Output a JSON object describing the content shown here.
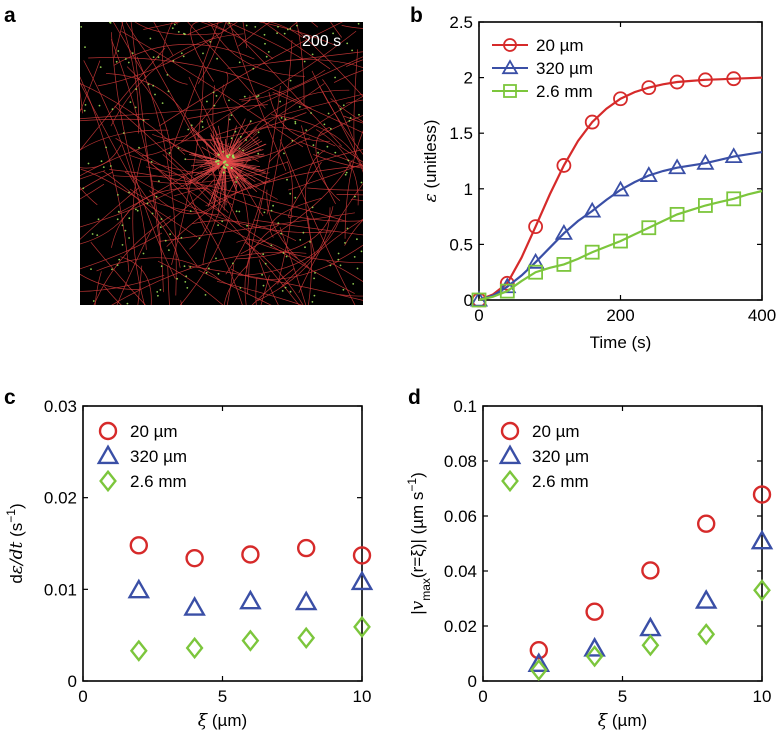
{
  "panel_labels": {
    "a": "a",
    "b": "b",
    "c": "c",
    "d": "d"
  },
  "image_panel": {
    "timestamp": "200 s",
    "fiber_color": "#d23a3a",
    "crosslink_color": "#9ee05a",
    "background": "#000000"
  },
  "series_styles": [
    {
      "name": "20 µm",
      "color": "#d62a2a",
      "marker_b": "circle",
      "marker_cd": "circle"
    },
    {
      "name": "320 µm",
      "color": "#3a4fa6",
      "marker_b": "triangle",
      "marker_cd": "triangle"
    },
    {
      "name": "2.6 mm",
      "color": "#7cc63c",
      "marker_b": "square",
      "marker_cd": "diamond"
    }
  ],
  "chart_data": [
    {
      "id": "b",
      "type": "line",
      "xlabel": "Time (s)",
      "ylabel_symbol": "ε",
      "ylabel_rest": " (unitless)",
      "xlim": [
        0,
        400
      ],
      "ylim": [
        0,
        2.5
      ],
      "xticks": [
        0,
        200,
        400
      ],
      "yticks": [
        0,
        0.5,
        1,
        1.5,
        2,
        2.5
      ],
      "yticklabels": [
        "0",
        "0.5",
        "1",
        "1.5",
        "2",
        "2.5"
      ],
      "legend_position": "top-left",
      "series": [
        {
          "name": "20 µm",
          "x": [
            0,
            20,
            40,
            60,
            80,
            100,
            120,
            140,
            160,
            180,
            200,
            220,
            240,
            260,
            280,
            300,
            320,
            340,
            360,
            380,
            400
          ],
          "y": [
            0,
            0.05,
            0.15,
            0.38,
            0.66,
            0.95,
            1.21,
            1.43,
            1.6,
            1.72,
            1.81,
            1.87,
            1.91,
            1.94,
            1.96,
            1.97,
            1.98,
            1.985,
            1.99,
            1.995,
            2.0
          ],
          "marker_x": [
            0,
            40,
            80,
            120,
            160,
            200,
            240,
            280,
            320,
            360
          ],
          "marker_y": [
            0,
            0.15,
            0.66,
            1.21,
            1.6,
            1.81,
            1.91,
            1.96,
            1.98,
            1.99
          ]
        },
        {
          "name": "320 µm",
          "x": [
            0,
            20,
            40,
            60,
            80,
            100,
            120,
            140,
            160,
            180,
            200,
            220,
            240,
            260,
            280,
            300,
            320,
            340,
            360,
            380,
            400
          ],
          "y": [
            0,
            0.04,
            0.12,
            0.22,
            0.34,
            0.47,
            0.6,
            0.71,
            0.8,
            0.9,
            0.99,
            1.06,
            1.12,
            1.16,
            1.19,
            1.21,
            1.23,
            1.26,
            1.29,
            1.31,
            1.33
          ],
          "marker_x": [
            0,
            40,
            80,
            120,
            160,
            200,
            240,
            280,
            320,
            360
          ],
          "marker_y": [
            0,
            0.12,
            0.34,
            0.6,
            0.8,
            0.99,
            1.12,
            1.19,
            1.23,
            1.29
          ]
        },
        {
          "name": "2.6 mm",
          "x": [
            0,
            20,
            40,
            60,
            80,
            100,
            120,
            140,
            160,
            180,
            200,
            220,
            240,
            260,
            280,
            300,
            320,
            340,
            360,
            380,
            400
          ],
          "y": [
            0,
            0.03,
            0.08,
            0.17,
            0.25,
            0.29,
            0.32,
            0.37,
            0.43,
            0.48,
            0.53,
            0.59,
            0.65,
            0.71,
            0.77,
            0.81,
            0.85,
            0.88,
            0.91,
            0.95,
            0.98
          ],
          "marker_x": [
            0,
            40,
            80,
            120,
            160,
            200,
            240,
            280,
            320,
            360
          ],
          "marker_y": [
            0,
            0.08,
            0.25,
            0.32,
            0.43,
            0.53,
            0.65,
            0.77,
            0.85,
            0.91
          ]
        }
      ]
    },
    {
      "id": "c",
      "type": "scatter",
      "xlabel_symbol": "ξ",
      "xlabel_rest": " (µm)",
      "ylabel_pre": "d",
      "ylabel_mid": "ε/d",
      "ylabel_t": "t",
      "ylabel_post": " (s",
      "ylabel_sup": "−1",
      "ylabel_end": ")",
      "xlim": [
        0,
        10
      ],
      "ylim": [
        0,
        0.03
      ],
      "xticks": [
        0,
        5,
        10
      ],
      "yticks": [
        0,
        0.01,
        0.02,
        0.03
      ],
      "yticklabels": [
        "0",
        "0.01",
        "0.02",
        "0.03"
      ],
      "legend_position": "top-left",
      "series": [
        {
          "name": "20 µm",
          "x": [
            2,
            4,
            6,
            8,
            10
          ],
          "y": [
            0.0148,
            0.0134,
            0.0138,
            0.0145,
            0.0137
          ]
        },
        {
          "name": "320 µm",
          "x": [
            2,
            4,
            6,
            8,
            10
          ],
          "y": [
            0.0099,
            0.008,
            0.0087,
            0.0086,
            0.0108
          ]
        },
        {
          "name": "2.6 mm",
          "x": [
            2,
            4,
            6,
            8,
            10
          ],
          "y": [
            0.0033,
            0.0036,
            0.0044,
            0.0047,
            0.0059
          ]
        }
      ]
    },
    {
      "id": "d",
      "type": "scatter",
      "xlabel_symbol": "ξ",
      "xlabel_rest": " (µm)",
      "ylabel_open": "|v",
      "ylabel_sub": "max",
      "ylabel_mid": "(r=ξ)| (µm s",
      "ylabel_sup": "−1",
      "ylabel_end": ")",
      "xlim": [
        0,
        10
      ],
      "ylim": [
        0,
        0.1
      ],
      "xticks": [
        0,
        5,
        10
      ],
      "yticks": [
        0,
        0.02,
        0.04,
        0.06,
        0.08,
        0.1
      ],
      "yticklabels": [
        "0",
        "0.02",
        "0.04",
        "0.06",
        "0.08",
        "0.1"
      ],
      "legend_position": "top-left",
      "series": [
        {
          "name": "20 µm",
          "x": [
            2,
            4,
            6,
            8,
            10
          ],
          "y": [
            0.0112,
            0.0252,
            0.0402,
            0.0572,
            0.0678
          ]
        },
        {
          "name": "320 µm",
          "x": [
            2,
            4,
            6,
            8,
            10
          ],
          "y": [
            0.0062,
            0.0118,
            0.0192,
            0.0292,
            0.0508
          ]
        },
        {
          "name": "2.6 mm",
          "x": [
            2,
            4,
            6,
            8,
            10
          ],
          "y": [
            0.004,
            0.009,
            0.013,
            0.017,
            0.033
          ]
        }
      ]
    }
  ]
}
